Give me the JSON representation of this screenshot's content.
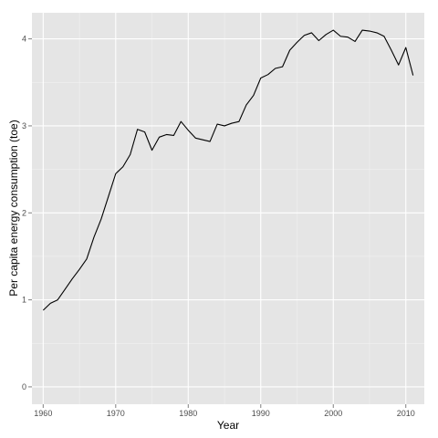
{
  "chart_data": {
    "type": "line",
    "title": "",
    "xlabel": "Year",
    "ylabel": "Per capita energy consumption (toe)",
    "xlim": [
      1958.45,
      2012.55
    ],
    "ylim": [
      -0.2,
      4.3
    ],
    "x_ticks": [
      1960,
      1970,
      1980,
      1990,
      2000,
      2010
    ],
    "x_tick_labels": [
      "1960",
      "1970",
      "1980",
      "1990",
      "2000",
      "2010"
    ],
    "y_ticks": [
      0,
      1,
      2,
      3,
      4
    ],
    "y_tick_labels": [
      "0",
      "1",
      "2",
      "3",
      "4"
    ],
    "grid": true,
    "legend": "none",
    "colors": {
      "panel_background": "#e5e5e5",
      "grid_major": "#ffffff",
      "grid_minor": "#f2f2f2",
      "line": "#000000",
      "tick_text": "#4d4d4d"
    },
    "series": [
      {
        "x": [
          1960,
          1961,
          1962,
          1963,
          1964,
          1965,
          1966,
          1967,
          1968,
          1969,
          1970,
          1971,
          1972,
          1973,
          1974,
          1975,
          1976,
          1977,
          1978,
          1979,
          1980,
          1981,
          1982,
          1983,
          1984,
          1985,
          1986,
          1987,
          1988,
          1989,
          1990,
          1991,
          1992,
          1993,
          1994,
          1995,
          1996,
          1997,
          1998,
          1999,
          2000,
          2001,
          2002,
          2003,
          2004,
          2005,
          2006,
          2007,
          2008,
          2009,
          2010,
          2011
        ],
        "values": [
          0.88,
          0.96,
          1.0,
          1.12,
          1.24,
          1.35,
          1.47,
          1.72,
          1.93,
          2.19,
          2.45,
          2.53,
          2.67,
          2.96,
          2.93,
          2.72,
          2.87,
          2.9,
          2.89,
          3.05,
          2.95,
          2.86,
          2.84,
          2.82,
          3.02,
          3.0,
          3.03,
          3.05,
          3.24,
          3.35,
          3.55,
          3.59,
          3.66,
          3.68,
          3.87,
          3.96,
          4.04,
          4.07,
          3.98,
          4.05,
          4.1,
          4.03,
          4.02,
          3.97,
          4.1,
          4.09,
          4.07,
          4.03,
          3.87,
          3.7,
          3.9,
          3.58
        ]
      }
    ]
  }
}
